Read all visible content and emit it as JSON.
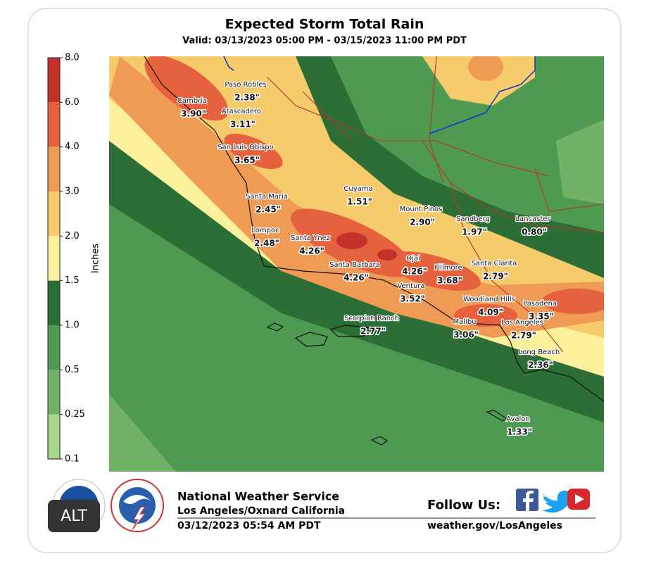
{
  "header": {
    "title": "Expected Storm Total Rain",
    "subtitle": "Valid: 03/13/2023 05:00 PM - 03/15/2023 11:00 PM PDT"
  },
  "colorbar": {
    "label": "Inches",
    "ticks": [
      "8.0",
      "6.0",
      "4.0",
      "3.0",
      "2.0",
      "1.5",
      "1.0",
      "0.5",
      "0.25",
      "0.1"
    ],
    "colors": [
      "#c4312b",
      "#e6613d",
      "#ef9a55",
      "#f6cb6b",
      "#fbf19c",
      "#2d6e36",
      "#4f9a52",
      "#72b266",
      "#a9d78d"
    ]
  },
  "locations": [
    {
      "name": "Paso Robles",
      "value": "2.38\""
    },
    {
      "name": "Cambria",
      "value": "3.90\""
    },
    {
      "name": "Atascadero",
      "value": "3.11\""
    },
    {
      "name": "San Luis Obispo",
      "value": "3.65\""
    },
    {
      "name": "Santa Maria",
      "value": "2.45\""
    },
    {
      "name": "Lompoc",
      "value": "2.48\""
    },
    {
      "name": "Santa Ynez",
      "value": "4.26\""
    },
    {
      "name": "Cuyama",
      "value": "1.51\""
    },
    {
      "name": "Mount Pinos",
      "value": "2.90\""
    },
    {
      "name": "Sandberg",
      "value": "1.97\""
    },
    {
      "name": "Lancaster",
      "value": "0.80\""
    },
    {
      "name": "Santa Barbara",
      "value": "4.26\""
    },
    {
      "name": "Ojai",
      "value": "4.26\""
    },
    {
      "name": "Ventura",
      "value": "3.52\""
    },
    {
      "name": "Fillmore",
      "value": "3.68\""
    },
    {
      "name": "Santa Clarita",
      "value": "2.79\""
    },
    {
      "name": "Woodland Hills",
      "value": "4.09\""
    },
    {
      "name": "Pasadena",
      "value": "3.35\""
    },
    {
      "name": "Scorpion Ranch",
      "value": "2.77\""
    },
    {
      "name": "Malibu",
      "value": "3.06\""
    },
    {
      "name": "Los Angeles",
      "value": "2.79\""
    },
    {
      "name": "Long Beach",
      "value": "2.36\""
    },
    {
      "name": "Avalon",
      "value": "1.33\""
    }
  ],
  "footer": {
    "agency": "National Weather Service",
    "office": "Los Angeles/Oxnard California",
    "issued": "03/12/2023 05:54 AM PDT",
    "follow": "Follow Us:",
    "url": "weather.gov/LosAngeles"
  },
  "badge": "ALT"
}
